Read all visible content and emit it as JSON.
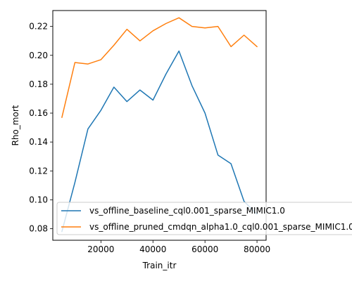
{
  "chart_data": {
    "type": "line",
    "xlabel": "Train_itr",
    "ylabel": "Rho_mort",
    "xlim": [
      1500,
      83500
    ],
    "ylim": [
      0.072,
      0.231
    ],
    "x_ticks": [
      20000,
      40000,
      60000,
      80000
    ],
    "x_tick_labels": [
      "20000",
      "40000",
      "60000",
      "80000"
    ],
    "y_ticks": [
      0.08,
      0.1,
      0.12,
      0.14,
      0.16,
      0.18,
      0.2,
      0.22
    ],
    "y_tick_labels": [
      "0.08",
      "0.10",
      "0.12",
      "0.14",
      "0.16",
      "0.18",
      "0.20",
      "0.22"
    ],
    "grid": false,
    "legend_position": "lower-right",
    "x": [
      5000,
      10000,
      15000,
      20000,
      25000,
      30000,
      35000,
      40000,
      45000,
      50000,
      55000,
      60000,
      65000,
      70000,
      75000,
      80000
    ],
    "series": [
      {
        "name": "vs_offline_baseline_cql0.001_sparse_MIMIC1.0",
        "color": "#1f77b4",
        "values": [
          0.078,
          0.112,
          0.149,
          0.162,
          0.178,
          0.168,
          0.176,
          0.169,
          0.187,
          0.203,
          0.179,
          0.16,
          0.131,
          0.125,
          0.099,
          0.09
        ]
      },
      {
        "name": "vs_offline_pruned_cmdqn_alpha1.0_cql0.001_sparse_MIMIC1.0",
        "color": "#ff7f0e",
        "values": [
          0.157,
          0.195,
          0.194,
          0.197,
          0.207,
          0.218,
          0.21,
          0.217,
          0.222,
          0.226,
          0.22,
          0.219,
          0.22,
          0.206,
          0.214,
          0.206
        ]
      }
    ]
  }
}
